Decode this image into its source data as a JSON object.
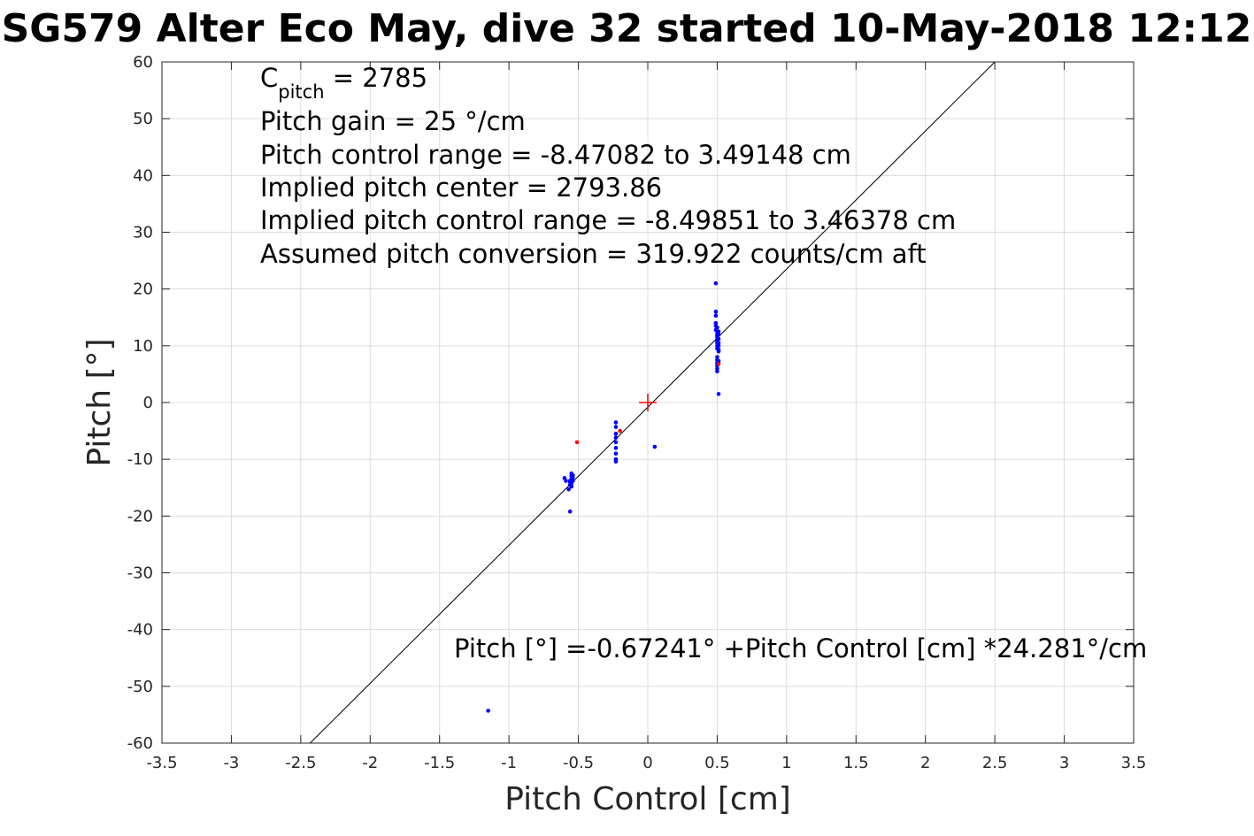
{
  "chart_data": {
    "type": "scatter",
    "title": "SG579 Alter Eco May, dive 32 started 10-May-2018 12:12",
    "xlabel": "Pitch Control [cm]",
    "ylabel": "Pitch [°]",
    "xlim": [
      -3.5,
      3.5
    ],
    "ylim": [
      -60,
      60
    ],
    "xticks": [
      "-3.5",
      "-3",
      "-2.5",
      "-2",
      "-1.5",
      "-1",
      "-0.5",
      "0",
      "0.5",
      "1",
      "1.5",
      "2",
      "2.5",
      "3",
      "3.5"
    ],
    "yticks": [
      "60",
      "50",
      "40",
      "30",
      "20",
      "10",
      "0",
      "-10",
      "-20",
      "-30",
      "-40",
      "-50",
      "-60"
    ],
    "grid": true,
    "annotations": {
      "cpitch_symbol": "C",
      "cpitch_subscript": "pitch",
      "cpitch_value": " = 2785",
      "pitch_gain": "Pitch gain = 25 °/cm",
      "pitch_control_range": "Pitch control range = -8.47082 to 3.49148 cm",
      "implied_pitch_center": "Implied pitch center = 2793.86",
      "implied_pitch_control_range": "Implied pitch control range = -8.49851 to 3.46378 cm",
      "assumed_pitch_conversion": "Assumed pitch conversion = 319.922 counts/cm aft",
      "fit_equation": "Pitch [°] =-0.67241° +Pitch Control [cm] *24.281°/cm"
    },
    "fit_line": {
      "color": "#000000",
      "x": [
        -2.433,
        2.5
      ],
      "y": [
        -60,
        60
      ]
    },
    "center_marker": {
      "color": "#ff0000",
      "x": 0,
      "y": 0
    },
    "series": [
      {
        "color": "#0000ff",
        "x": [
          -0.6,
          -0.59,
          -0.57,
          -0.56,
          -0.56,
          -0.56,
          -0.55,
          -0.55,
          -0.55,
          -0.55,
          -0.55,
          -0.54,
          -0.54,
          -0.54,
          -0.56,
          -1.15,
          -0.23,
          -0.23,
          -0.23,
          -0.23,
          -0.23,
          -0.23,
          -0.23,
          -0.23,
          -0.23,
          0.05,
          0.49,
          0.49,
          0.49,
          0.49,
          0.49,
          0.49,
          0.5,
          0.5,
          0.5,
          0.5,
          0.5,
          0.5,
          0.5,
          0.5,
          0.5,
          0.5,
          0.5,
          0.5,
          0.5,
          0.5,
          0.5,
          0.5,
          0.51,
          0.51,
          0.51,
          0.51,
          0.51,
          0.51,
          0.51,
          0.51,
          0.51
        ],
        "y": [
          -13.3,
          -13.8,
          -15.3,
          -14.5,
          -14.0,
          -13.8,
          -14.3,
          -13.5,
          -13.0,
          -12.5,
          -14.8,
          -13.8,
          -13.2,
          -12.8,
          -19.2,
          -54.3,
          -3.5,
          -4.3,
          -5.5,
          -6.2,
          -7.0,
          -8.0,
          -9.0,
          -10.0,
          -10.4,
          -7.8,
          21.0,
          16.0,
          15.3,
          14.0,
          13.5,
          12.8,
          13.2,
          12.5,
          12.0,
          11.5,
          11.0,
          10.5,
          10.0,
          9.5,
          8.0,
          7.5,
          7.0,
          6.5,
          6.0,
          5.5,
          11.8,
          10.8,
          12.5,
          12.0,
          11.2,
          10.5,
          10.0,
          9.3,
          9.0,
          7.3,
          1.5
        ]
      },
      {
        "color": "#ff0000",
        "x": [
          -0.51,
          -0.2,
          0.51
        ],
        "y": [
          -7.0,
          -5.0,
          6.8
        ]
      }
    ]
  }
}
